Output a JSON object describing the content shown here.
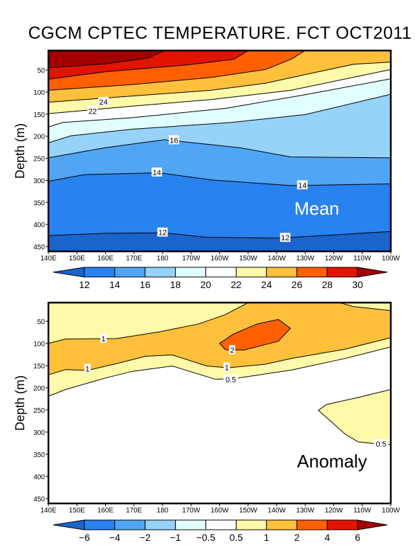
{
  "title": "CGCM CPTEC TEMPERATURE. FCT OCT2011",
  "chart_data": [
    {
      "type": "contour",
      "panel_label": "Mean",
      "ylabel": "Depth (m)",
      "xlim": [
        140,
        260
      ],
      "ylim": [
        6,
        461
      ],
      "y_reversed": true,
      "xticks": [
        140,
        150,
        160,
        170,
        180,
        190,
        200,
        210,
        220,
        230,
        240,
        250,
        260
      ],
      "xtick_labels": [
        "140E",
        "150E",
        "160E",
        "170E",
        "180",
        "170W",
        "160W",
        "150W",
        "140W",
        "130W",
        "120W",
        "110W",
        "100W"
      ],
      "yticks": [
        50,
        100,
        150,
        200,
        250,
        300,
        350,
        400,
        450
      ],
      "ytick_labels": [
        "50",
        "100",
        "150",
        "200",
        "250",
        "300",
        "350",
        "400",
        "450"
      ],
      "background_color": "#1a64cc",
      "contours": [
        {
          "level": 12,
          "fill_above": "#2882f0",
          "points": [
            [
              140,
              425
            ],
            [
              160,
              420
            ],
            [
              180.6,
              419
            ],
            [
              195.5,
              429
            ],
            [
              220.7,
              431
            ],
            [
              260,
              416
            ]
          ]
        },
        {
          "level": 14,
          "fill_above": "#50a5f5",
          "points": [
            [
              140,
              302
            ],
            [
              152.7,
              287
            ],
            [
              178.8,
              283
            ],
            [
              197,
              299
            ],
            [
              225,
              312
            ],
            [
              260,
              308
            ]
          ]
        },
        {
          "level": 16,
          "fill_above": "#96d2fa",
          "points": [
            [
              140,
              249
            ],
            [
              160,
              226
            ],
            [
              180.6,
              208
            ],
            [
              207,
              226
            ],
            [
              225,
              247
            ],
            [
              260,
              249
            ]
          ]
        },
        {
          "level": 18,
          "fill_above": "#e1ffff",
          "points": [
            [
              140,
              215
            ],
            [
              148,
              199
            ],
            [
              169.5,
              184
            ],
            [
              204,
              169
            ],
            [
              230,
              151
            ],
            [
              260,
              105
            ]
          ]
        },
        {
          "level": 20,
          "fill_above": "#ffffff",
          "points": [
            [
              140,
              179
            ],
            [
              145,
              169
            ],
            [
              169.5,
              158
            ],
            [
              202,
              137
            ],
            [
              230,
              106
            ],
            [
              260,
              70
            ]
          ]
        },
        {
          "level": 22,
          "fill_above": "#fffaaa",
          "points": [
            [
              140,
              149
            ],
            [
              169.5,
              132
            ],
            [
              197,
              117
            ],
            [
              225,
              96
            ],
            [
              248,
              65
            ],
            [
              260,
              49
            ]
          ]
        },
        {
          "level": 24,
          "fill_above": "#ffc03c",
          "points": [
            [
              140,
              123
            ],
            [
              169.5,
              109
            ],
            [
              197,
              96
            ],
            [
              216,
              80
            ],
            [
              234.6,
              54
            ],
            [
              247,
              37
            ],
            [
              260,
              32
            ]
          ]
        },
        {
          "level": 26,
          "fill_above": "#ff6000",
          "points": [
            [
              140,
              96
            ],
            [
              169.5,
              83
            ],
            [
              197,
              67
            ],
            [
              216,
              49
            ],
            [
              225,
              26
            ],
            [
              230,
              6
            ]
          ]
        },
        {
          "level": 28,
          "fill_above": "#e11400",
          "points": [
            [
              140,
              71
            ],
            [
              160,
              54
            ],
            [
              188,
              39
            ],
            [
              205,
              26
            ],
            [
              210,
              6
            ]
          ]
        },
        {
          "level": 30,
          "fill_above": "#a50000",
          "points": [
            [
              140,
              45
            ],
            [
              160.2,
              36
            ],
            [
              175,
              23
            ],
            [
              180.6,
              6
            ]
          ]
        }
      ],
      "contour_labels": [
        {
          "text": "24",
          "lon": 159.3,
          "depth": 122
        },
        {
          "text": "22",
          "lon": 155.5,
          "depth": 143
        },
        {
          "text": "16",
          "lon": 184,
          "depth": 209
        },
        {
          "text": "14",
          "lon": 178,
          "depth": 282
        },
        {
          "text": "14",
          "lon": 229,
          "depth": 311
        },
        {
          "text": "12",
          "lon": 180,
          "depth": 418
        },
        {
          "text": "12",
          "lon": 223,
          "depth": 430
        }
      ],
      "colorbar": {
        "labels": [
          "12",
          "14",
          "16",
          "18",
          "20",
          "22",
          "24",
          "26",
          "28",
          "30"
        ],
        "colors": [
          "#1a64cc",
          "#2882f0",
          "#50a5f5",
          "#96d2fa",
          "#e1ffff",
          "#ffffff",
          "#fffaaa",
          "#ffc03c",
          "#ff6000",
          "#e11400",
          "#a50000"
        ]
      }
    },
    {
      "type": "contour",
      "panel_label": "Anomaly",
      "ylabel": "Depth (m)",
      "xlim": [
        140,
        260
      ],
      "ylim": [
        8,
        461
      ],
      "y_reversed": true,
      "xticks": [
        140,
        150,
        160,
        170,
        180,
        190,
        200,
        210,
        220,
        230,
        240,
        250,
        260
      ],
      "xtick_labels": [
        "140E",
        "150E",
        "160E",
        "170E",
        "180",
        "170W",
        "160W",
        "150W",
        "140W",
        "130W",
        "120W",
        "110W",
        "100W"
      ],
      "yticks": [
        50,
        100,
        150,
        200,
        250,
        300,
        350,
        400,
        450
      ],
      "ytick_labels": [
        "50",
        "100",
        "150",
        "200",
        "250",
        "300",
        "350",
        "400",
        "450"
      ],
      "background_color": "#ffffff",
      "regions": [
        {
          "level": 0.5,
          "color": "#fffaaa",
          "points": [
            [
              140,
              219
            ],
            [
              146,
              204
            ],
            [
              160,
              178
            ],
            [
              169.5,
              163
            ],
            [
              183.4,
              151
            ],
            [
              198.6,
              181
            ],
            [
              206.7,
              178
            ],
            [
              225.3,
              160
            ],
            [
              243.9,
              134
            ],
            [
              260,
              108
            ],
            [
              260,
              8
            ],
            [
              140,
              8
            ]
          ]
        },
        {
          "level": 0.5,
          "color": "#fffaaa",
          "points": [
            [
              260,
              204
            ],
            [
              248.5,
              222
            ],
            [
              237.4,
              238
            ],
            [
              234.6,
              251
            ],
            [
              237.4,
              267
            ],
            [
              243.9,
              304
            ],
            [
              248.5,
              322
            ],
            [
              255.9,
              327
            ],
            [
              260,
              328
            ]
          ]
        },
        {
          "level": 1,
          "color": "#ffc03c",
          "points": [
            [
              140,
              171
            ],
            [
              146,
              159
            ],
            [
              153.7,
              161
            ],
            [
              164.8,
              144
            ],
            [
              174,
              129
            ],
            [
              183.4,
              126
            ],
            [
              195.5,
              151
            ],
            [
              203,
              155
            ],
            [
              216,
              147
            ],
            [
              225,
              134
            ],
            [
              244,
              113
            ],
            [
              260,
              87
            ],
            [
              260,
              26
            ],
            [
              247,
              17
            ],
            [
              242,
              8
            ],
            [
              210,
              8
            ],
            [
              202,
              35
            ],
            [
              192.7,
              56
            ],
            [
              178.8,
              74
            ],
            [
              164,
              89
            ],
            [
              146,
              90
            ],
            [
              140,
              100
            ]
          ]
        },
        {
          "level": 2,
          "color": "#ff6000",
          "points": [
            [
              200,
              100
            ],
            [
              204.8,
              79
            ],
            [
              213.2,
              56
            ],
            [
              220.6,
              46
            ],
            [
              224.8,
              66
            ],
            [
              220.6,
              95
            ],
            [
              208.5,
              115
            ],
            [
              202,
              114
            ]
          ]
        }
      ],
      "contour_labels": [
        {
          "text": "1",
          "lon": 159.3,
          "depth": 89
        },
        {
          "text": "2",
          "lon": 204.4,
          "depth": 115
        },
        {
          "text": "1",
          "lon": 153.7,
          "depth": 157
        },
        {
          "text": "1",
          "lon": 202.5,
          "depth": 154
        },
        {
          "text": "0.5",
          "lon": 203.9,
          "depth": 181
        },
        {
          "text": "0.5",
          "lon": 256.6,
          "depth": 327
        }
      ],
      "colorbar": {
        "labels": [
          "−6",
          "−4",
          "−2",
          "−1",
          "−0.5",
          "0.5",
          "1",
          "2",
          "4",
          "6"
        ],
        "colors": [
          "#1a64cc",
          "#2882f0",
          "#50a5f5",
          "#96d2fa",
          "#e1ffff",
          "#ffffff",
          "#fffaaa",
          "#ffc03c",
          "#ff6000",
          "#e11400",
          "#a50000"
        ]
      }
    }
  ]
}
